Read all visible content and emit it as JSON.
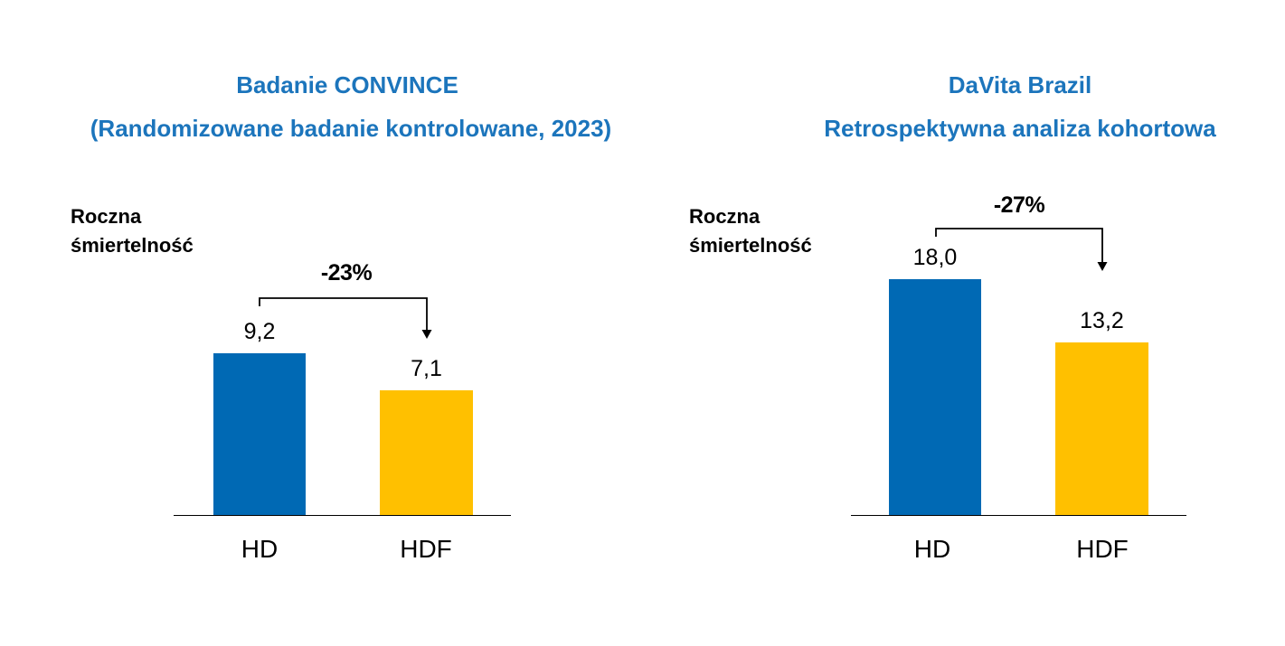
{
  "page": {
    "background": "#ffffff"
  },
  "colors": {
    "title_blue": "#1C75BC",
    "bar_blue": "#0069B4",
    "bar_yellow": "#FFC000",
    "text_black": "#000000"
  },
  "chart_data": [
    {
      "type": "bar",
      "title": "Badanie CONVINCE",
      "subtitle": "(Randomizowane badanie kontrolowane, 2023)",
      "ylabel": "Roczna śmiertelność",
      "categories": [
        "HD",
        "HDF"
      ],
      "values": [
        9.2,
        7.1
      ],
      "value_labels": [
        "9,2",
        "7,1"
      ],
      "change_annotation": "-23%",
      "bar_colors": [
        "#0069B4",
        "#FFC000"
      ],
      "ylim": [
        0,
        10
      ],
      "grid": false,
      "legend": false
    },
    {
      "type": "bar",
      "title": "DaVita Brazil",
      "subtitle": "Retrospektywna analiza kohortowa",
      "ylabel": "Roczna śmiertelność",
      "categories": [
        "HD",
        "HDF"
      ],
      "values": [
        18.0,
        13.2
      ],
      "value_labels": [
        "18,0",
        "13,2"
      ],
      "change_annotation": "-27%",
      "bar_colors": [
        "#0069B4",
        "#FFC000"
      ],
      "ylim": [
        0,
        20
      ],
      "grid": false,
      "legend": false
    }
  ]
}
